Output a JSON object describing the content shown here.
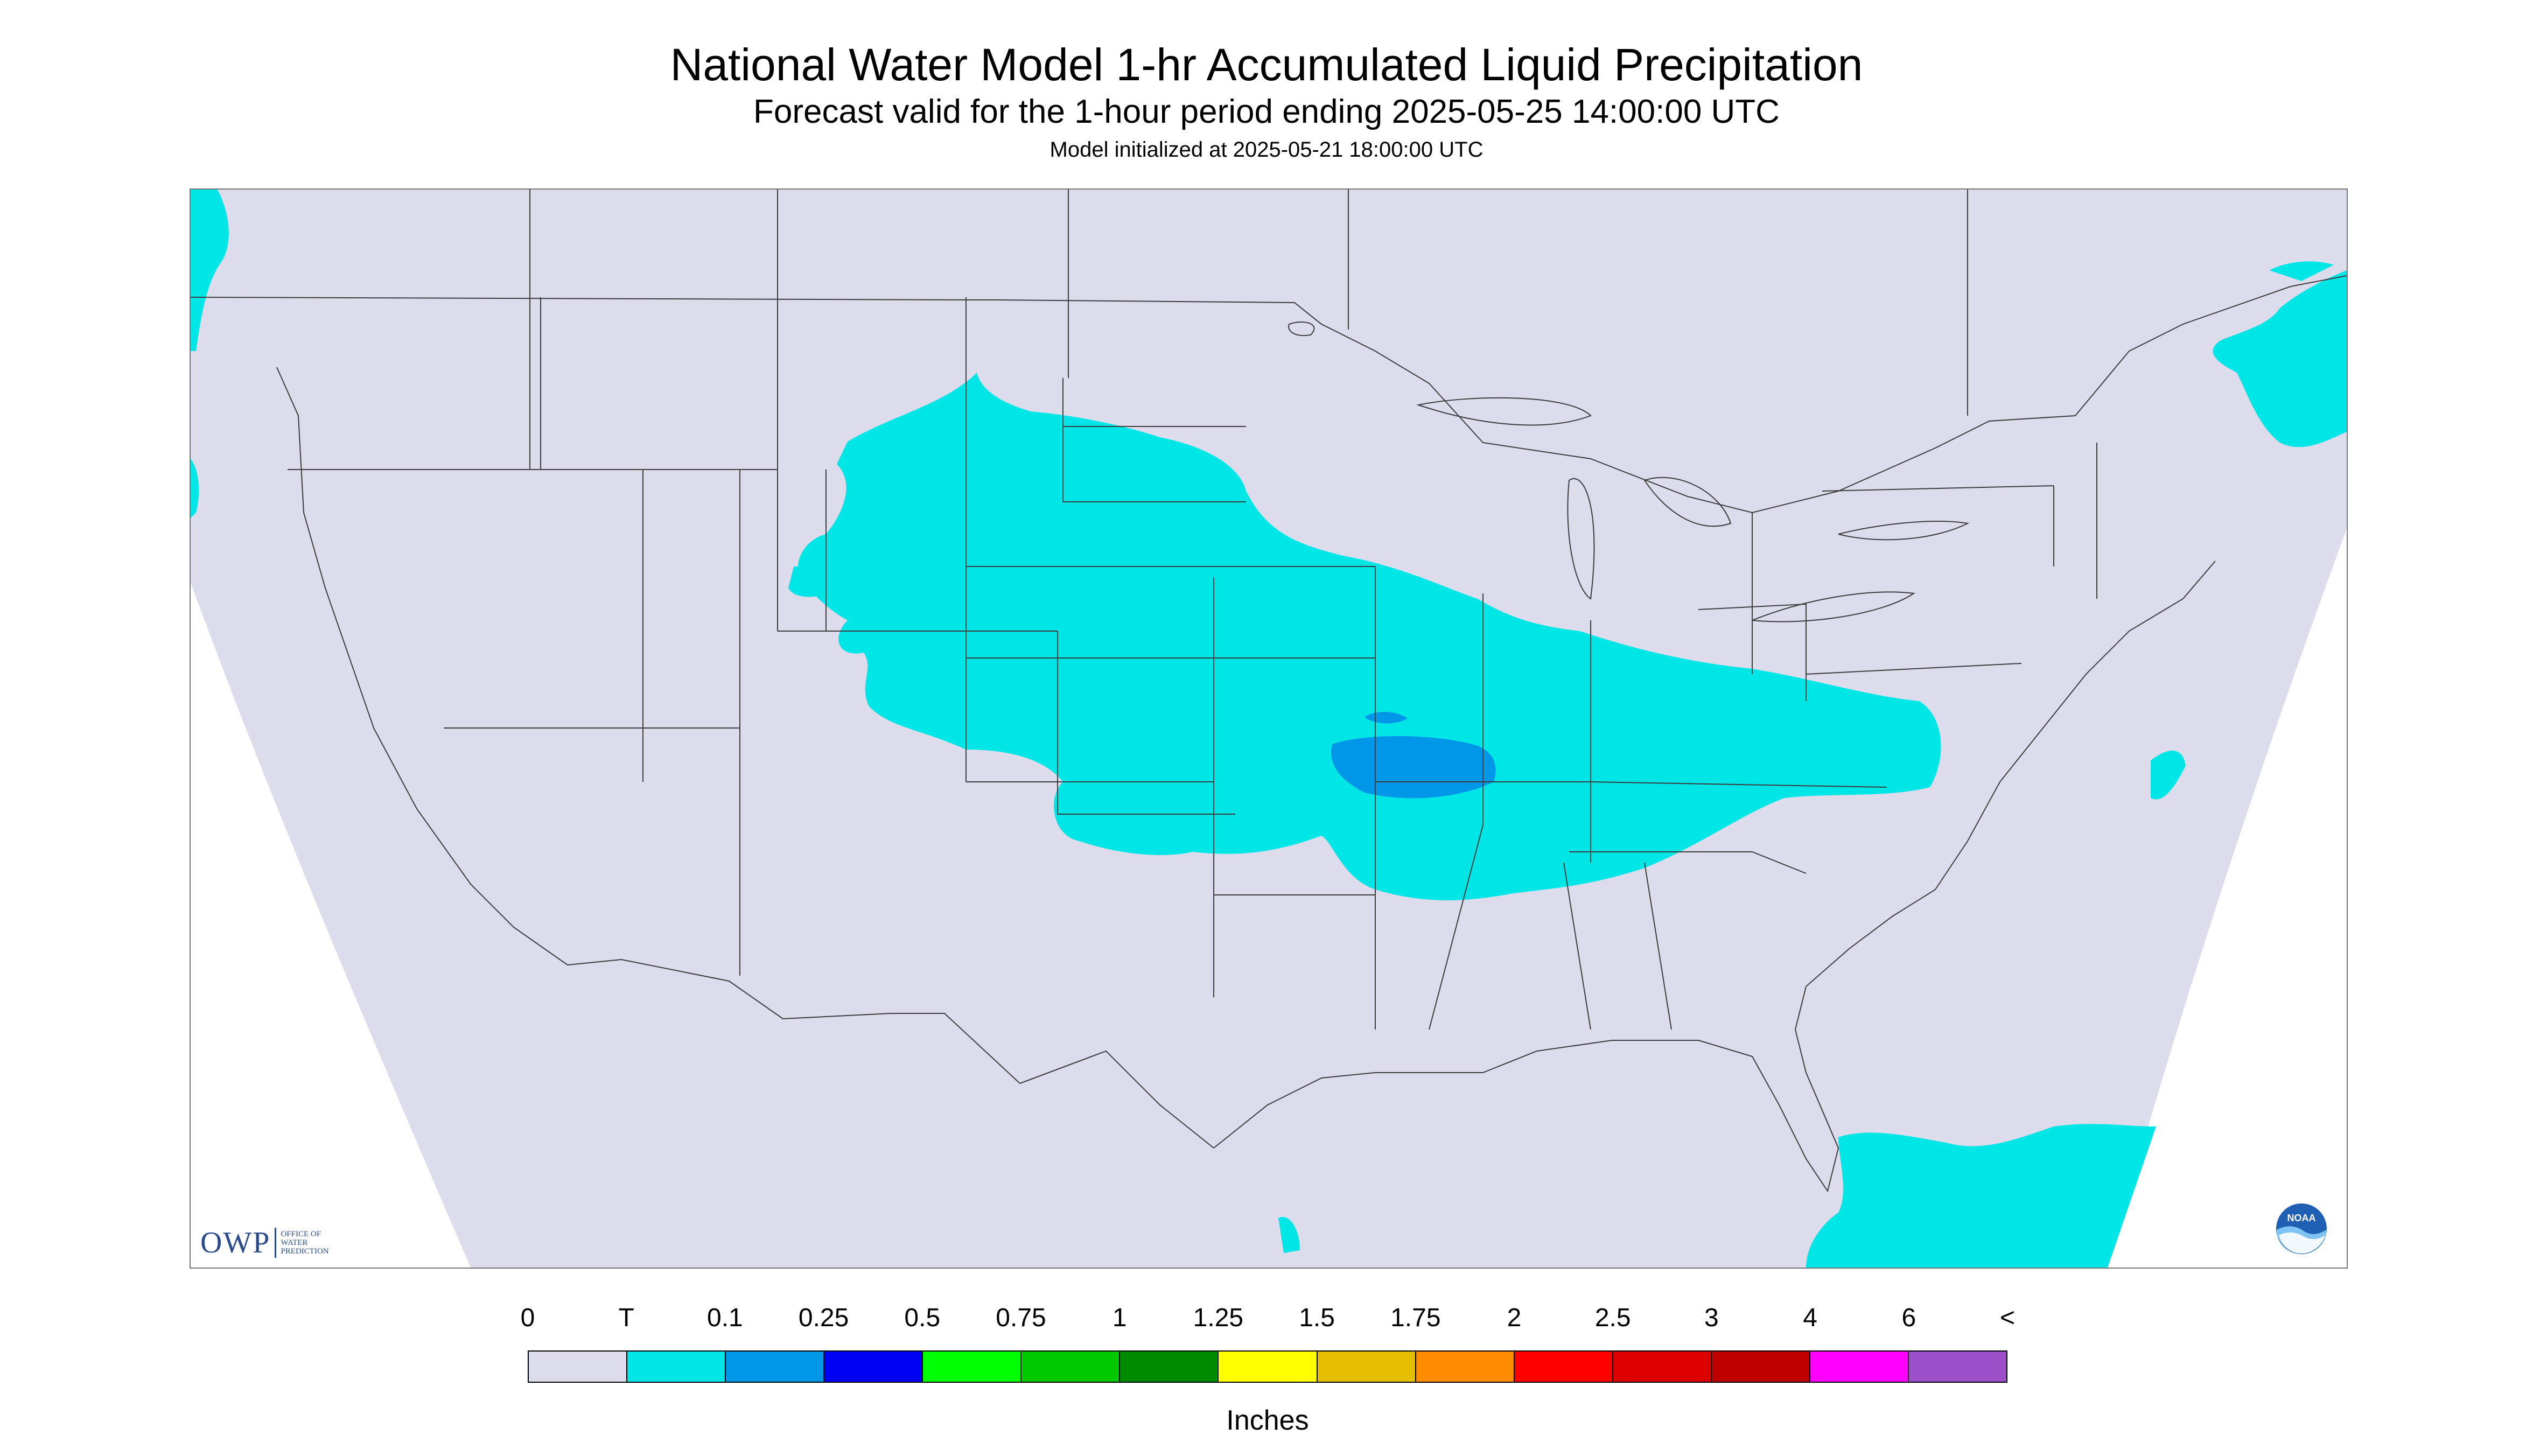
{
  "title": "National Water Model 1-hr Accumulated Liquid Precipitation",
  "subtitle": "Forecast valid for the 1-hour period ending 2025-05-25 14:00:00 UTC",
  "initialized": "Model initialized at 2025-05-21 18:00:00 UTC",
  "colors": {
    "background_land": "#dcdcec",
    "boundary": "#3c3c3c",
    "precip_trace": "#00e5e5",
    "precip_01": "#0097e8"
  },
  "logos": {
    "owp": {
      "mark": "OWP",
      "words": [
        "OFFICE OF",
        "WATER",
        "PREDICTION"
      ]
    },
    "noaa": {
      "icon": "noaa-emblem-icon",
      "text": "NOAA"
    }
  },
  "legend": {
    "units": "Inches",
    "labels": [
      "0",
      "T",
      "0.1",
      "0.25",
      "0.5",
      "0.75",
      "1",
      "1.25",
      "1.5",
      "1.75",
      "2",
      "2.5",
      "3",
      "4",
      "6",
      "<"
    ],
    "colors": [
      "#dcdcec",
      "#00e5e5",
      "#0097e8",
      "#0000f5",
      "#00ff00",
      "#00c800",
      "#008a00",
      "#ffff00",
      "#e6be00",
      "#ff8c00",
      "#ff0000",
      "#dc0000",
      "#be0000",
      "#ff00ff",
      "#9b4fc8"
    ]
  }
}
